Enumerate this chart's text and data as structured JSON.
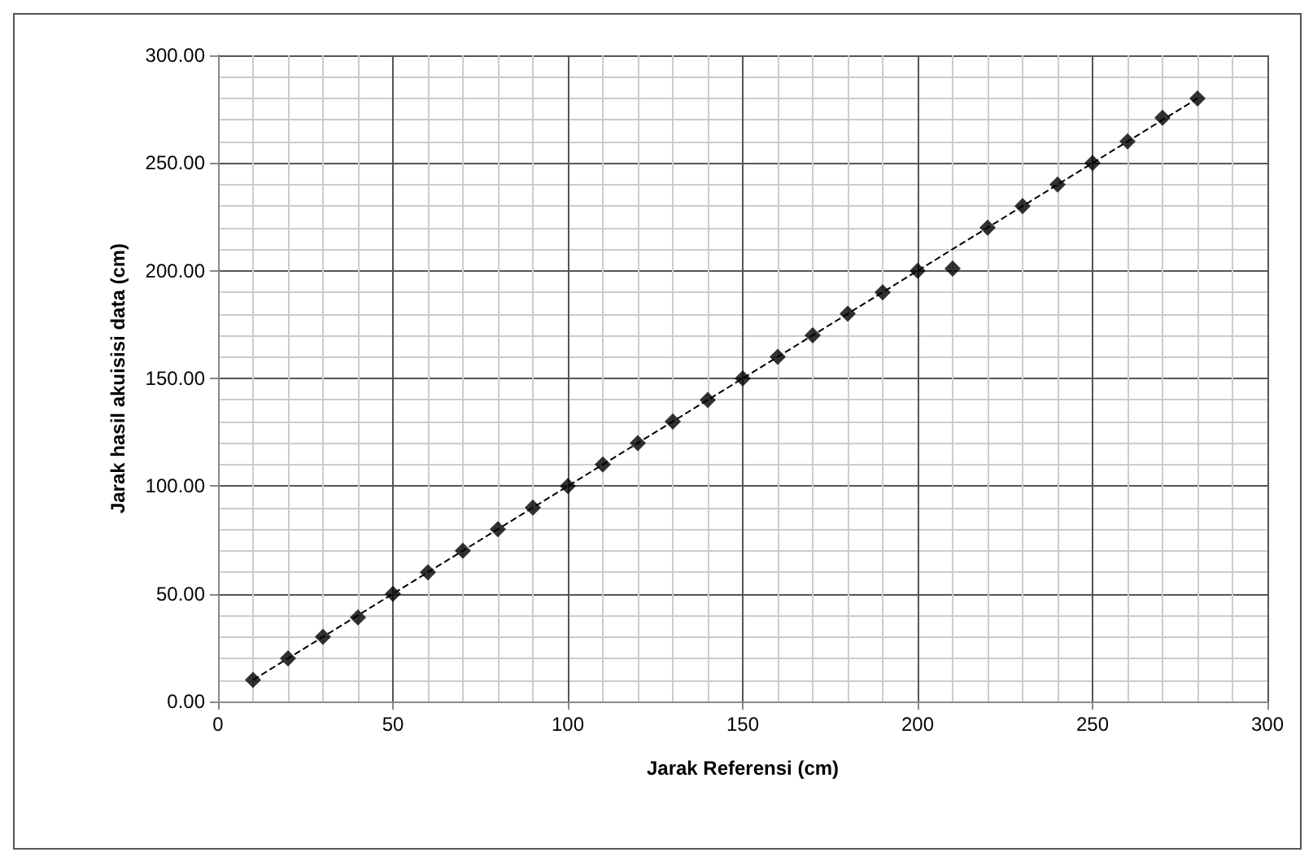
{
  "chart_data": {
    "type": "scatter",
    "xlabel": "Jarak Referensi (cm)",
    "ylabel": "Jarak hasil akuisisi data (cm)",
    "xlim": [
      0,
      300
    ],
    "xticks": [
      0,
      50,
      100,
      150,
      200,
      250,
      300
    ],
    "ylim": [
      0,
      300
    ],
    "yticks": [
      {
        "value": 0,
        "label": "0.00"
      },
      {
        "value": 50,
        "label": "50.00"
      },
      {
        "value": 100,
        "label": "100.00"
      },
      {
        "value": 150,
        "label": "150.00"
      },
      {
        "value": 200,
        "label": "200.00"
      },
      {
        "value": 250,
        "label": "250.00"
      },
      {
        "value": 300,
        "label": "300.00"
      }
    ],
    "grid": true,
    "marker": "diamond",
    "series": [
      {
        "color": "#000000",
        "x": [
          10,
          20,
          30,
          40,
          50,
          60,
          70,
          80,
          90,
          100,
          110,
          120,
          130,
          140,
          150,
          160,
          170,
          180,
          190,
          200,
          210,
          220,
          230,
          240,
          250,
          260,
          270,
          280
        ],
        "values": [
          10,
          20,
          30,
          39,
          50,
          60,
          70,
          80,
          90,
          100,
          110,
          120,
          130,
          140,
          150,
          160,
          170,
          180,
          190,
          200,
          201,
          220,
          230,
          240,
          250,
          260,
          271,
          280
        ]
      },
      {
        "type": "line",
        "color": "#000000",
        "line_style": "dashed",
        "marker": "none",
        "x": [
          10,
          280
        ],
        "values": [
          10,
          280
        ]
      }
    ]
  }
}
